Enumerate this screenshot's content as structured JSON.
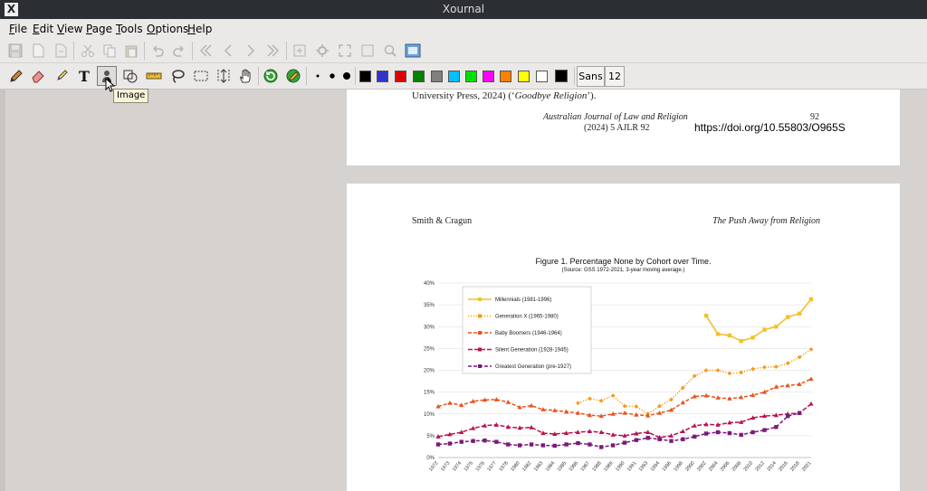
{
  "window": {
    "title": "Xournal",
    "app_icon": "X"
  },
  "menu": [
    {
      "label": "File",
      "u": "F",
      "rest": "ile"
    },
    {
      "label": "Edit",
      "u": "E",
      "rest": "dit"
    },
    {
      "label": "View",
      "u": "V",
      "rest": "iew"
    },
    {
      "label": "Page",
      "u": "P",
      "rest": "age"
    },
    {
      "label": "Tools",
      "u": "T",
      "rest": "ools"
    },
    {
      "label": "Options",
      "u": "O",
      "rest": "ptions"
    },
    {
      "label": "Help",
      "u": "H",
      "rest": "elp"
    }
  ],
  "toolbar1_icons": [
    "save-icon",
    "new-page-icon",
    "export-icon",
    "cut-icon",
    "copy-icon",
    "paste-icon",
    "undo-icon",
    "redo-icon",
    "first-page-icon",
    "previous-page-icon",
    "next-page-icon",
    "last-page-icon",
    "zoom-fit-icon",
    "zoom-settings-icon",
    "fullscreen-icon",
    "zoom-icon",
    "zoom-normal-icon"
  ],
  "toolbar2_tools": [
    "pen-icon",
    "eraser-icon",
    "highlighter-icon",
    "text-icon",
    "image-icon",
    "shape-recognizer-icon",
    "ruler-icon",
    "lasso-select-icon",
    "rect-select-icon",
    "vertical-space-icon",
    "hand-icon",
    "default-pen-icon",
    "default-tool-icon"
  ],
  "colors": [
    "#000000",
    "#3333cc",
    "#dd0000",
    "#008000",
    "#808080",
    "#00c0ff",
    "#00e000",
    "#ff00ff",
    "#ff8000",
    "#ffff00",
    "#ffffff",
    "#000000"
  ],
  "font": {
    "name": "Sans",
    "size": "12"
  },
  "tooltip": "Image",
  "page1": {
    "line1": "University Press, 2024) (‘Goodbye Religion’).",
    "journal": "Australian Journal of Law and Religion",
    "page_no": "92",
    "citation": "(2024) 5 AJLR 92",
    "doi": "https://doi.org/10.55803/O965S"
  },
  "page2": {
    "header_left": "Smith & Cragun",
    "header_right": "The Push Away from Religion"
  },
  "chart_data": {
    "type": "line",
    "title": "Figure 1. Percentage None by Cohort over Time.",
    "subtitle": "(Source: GSS 1972-2021, 3-year moving average.)",
    "ylim": [
      0,
      40
    ],
    "yticks": [
      "0%",
      "5%",
      "10%",
      "15%",
      "20%",
      "25%",
      "30%",
      "35%",
      "40%"
    ],
    "x": [
      "1972",
      "1973",
      "1974",
      "1975",
      "1976",
      "1977",
      "1978",
      "1980",
      "1982",
      "1983",
      "1984",
      "1985",
      "1986",
      "1987",
      "1988",
      "1989",
      "1990",
      "1991",
      "1993",
      "1994",
      "1996",
      "1998",
      "2000",
      "2002",
      "2004",
      "2006",
      "2008",
      "2010",
      "2012",
      "2014",
      "2016",
      "2018",
      "2021"
    ],
    "legend_position": "top-left",
    "series": [
      {
        "name": "Millennials (1981-1996)",
        "color": "#f2c12e",
        "values": [
          null,
          null,
          null,
          null,
          null,
          null,
          null,
          null,
          null,
          null,
          null,
          null,
          null,
          null,
          null,
          null,
          null,
          null,
          null,
          null,
          null,
          null,
          null,
          32.5,
          28.3,
          28.0,
          26.7,
          27.5,
          29.3,
          30.0,
          32.2,
          33.0,
          36.3
        ]
      },
      {
        "name": "Generation X (1965-1980)",
        "color": "#f59a1c",
        "values": [
          null,
          null,
          null,
          null,
          null,
          null,
          null,
          null,
          null,
          null,
          null,
          null,
          12.5,
          13.5,
          13.0,
          14.2,
          11.8,
          11.7,
          10.0,
          11.8,
          13.3,
          16.0,
          18.7,
          20.0,
          20.0,
          19.3,
          19.5,
          20.3,
          20.7,
          20.8,
          21.6,
          23.0,
          24.8
        ]
      },
      {
        "name": "Baby Boomers (1946-1964)",
        "color": "#e8551f",
        "values": [
          11.7,
          12.5,
          12.0,
          12.9,
          13.2,
          13.3,
          12.7,
          11.5,
          11.9,
          11.0,
          10.8,
          10.5,
          10.2,
          9.7,
          9.5,
          10.0,
          10.2,
          9.8,
          9.6,
          10.2,
          10.9,
          12.6,
          14.0,
          14.2,
          13.7,
          13.5,
          13.8,
          14.3,
          15.0,
          16.2,
          16.5,
          16.8,
          18.0
        ]
      },
      {
        "name": "Silent Generation (1928-1945)",
        "color": "#b8124f",
        "values": [
          4.8,
          5.3,
          5.8,
          6.7,
          7.3,
          7.5,
          7.0,
          6.8,
          6.9,
          5.6,
          5.4,
          5.6,
          5.8,
          6.0,
          5.8,
          5.2,
          5.0,
          5.5,
          5.8,
          4.6,
          5.0,
          6.0,
          7.3,
          7.6,
          7.5,
          8.0,
          8.1,
          9.1,
          9.5,
          9.7,
          10.0,
          10.2,
          12.3
        ]
      },
      {
        "name": "Greatest Generation (pre-1927)",
        "color": "#7a1a7a",
        "values": [
          3.0,
          3.2,
          3.6,
          3.8,
          3.9,
          3.6,
          3.0,
          2.8,
          3.0,
          2.8,
          2.7,
          3.0,
          3.3,
          3.0,
          2.4,
          2.8,
          3.4,
          4.0,
          4.5,
          4.2,
          3.8,
          4.2,
          4.8,
          5.5,
          5.8,
          5.6,
          5.2,
          5.8,
          6.3,
          7.0,
          9.5,
          10.2,
          null
        ]
      }
    ]
  }
}
